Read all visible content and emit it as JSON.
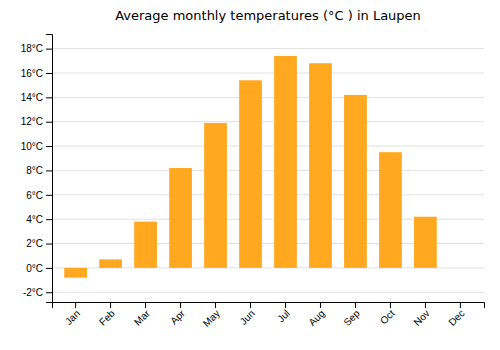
{
  "chart_data": {
    "type": "bar",
    "title": "Average monthly temperatures (°C ) in Laupen",
    "categories": [
      "Jan",
      "Feb",
      "Mar",
      "Apr",
      "May",
      "Jun",
      "Jul",
      "Aug",
      "Sep",
      "Oct",
      "Nov",
      "Dec"
    ],
    "values": [
      -0.8,
      0.7,
      3.8,
      8.2,
      11.9,
      15.4,
      17.4,
      16.8,
      14.2,
      9.5,
      4.2,
      0.0
    ],
    "color": "#FFA820",
    "ylim": [
      -2.8,
      19.2
    ],
    "yticks": [
      {
        "value": -2,
        "label": "-2°C"
      },
      {
        "value": 0,
        "label": "0°C"
      },
      {
        "value": 2,
        "label": "2°C"
      },
      {
        "value": 4,
        "label": "4°C"
      },
      {
        "value": 6,
        "label": "6°C"
      },
      {
        "value": 8,
        "label": "8°C"
      },
      {
        "value": 10,
        "label": "10°C"
      },
      {
        "value": 12,
        "label": "12°C"
      },
      {
        "value": 14,
        "label": "14°C"
      },
      {
        "value": 16,
        "label": "16°C"
      },
      {
        "value": 18,
        "label": "18°C"
      }
    ],
    "grid": true
  }
}
